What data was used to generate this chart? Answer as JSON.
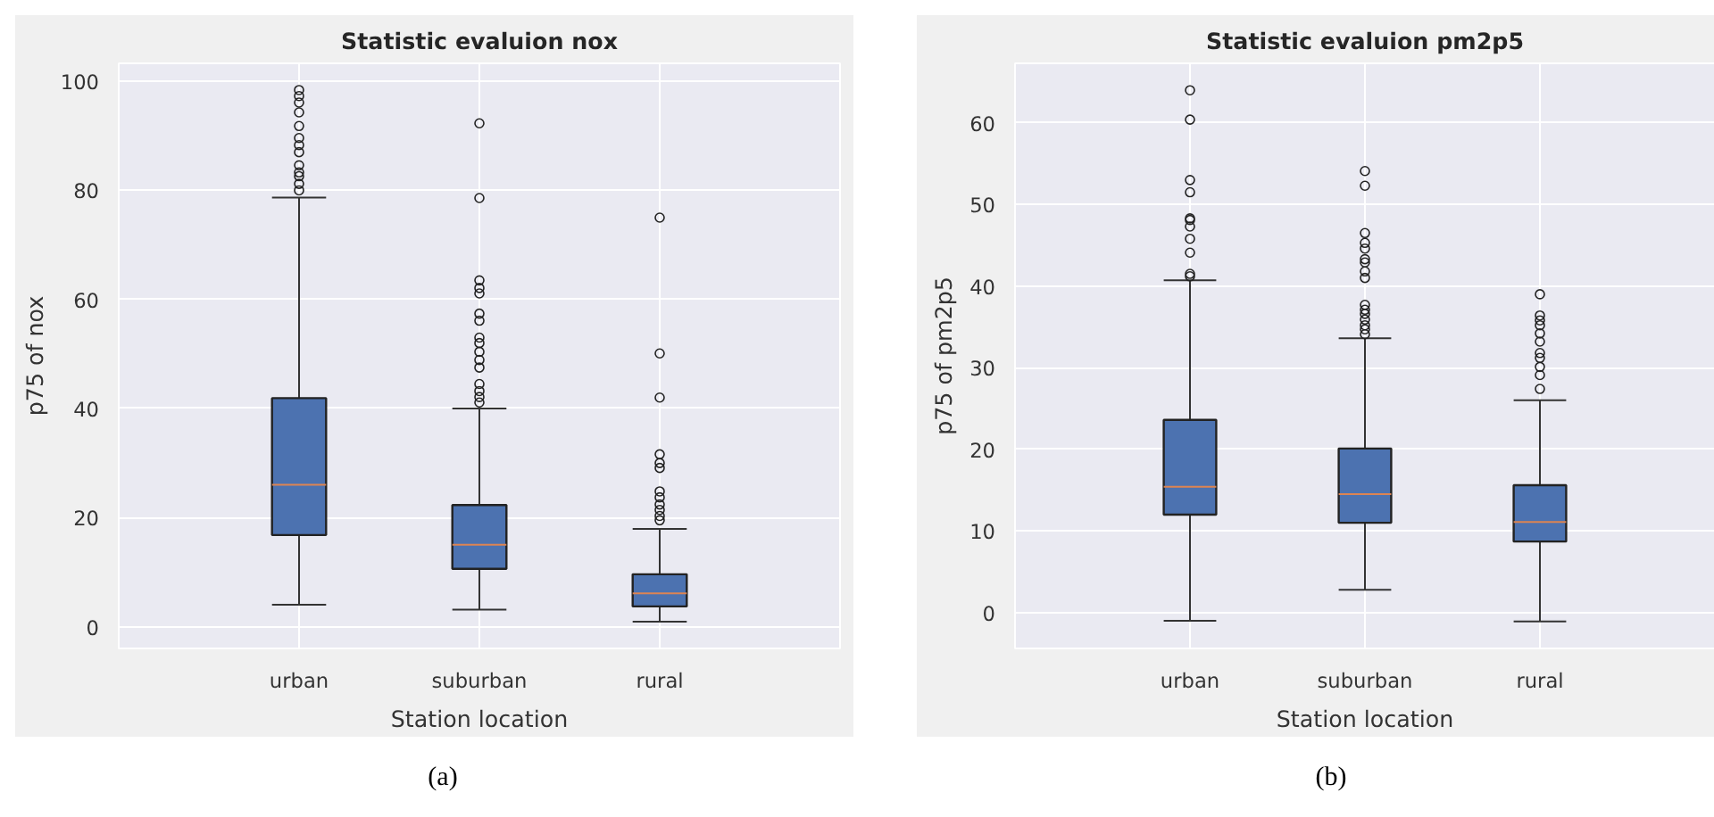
{
  "chart_data": [
    {
      "type": "box",
      "title": "Statistic evaluion nox",
      "xlabel": "Station location",
      "ylabel": "p75 of nox",
      "categories": [
        "urban",
        "suburban",
        "rural"
      ],
      "ylim": [
        -4,
        103.3
      ],
      "yticks": [
        0,
        20,
        40,
        60,
        80,
        100
      ],
      "grid": true,
      "annotations": [
        "(a)"
      ],
      "series": [
        {
          "color": "#4c72b0",
          "boxes": [
            {
              "low": 4.0,
              "q1": 16.8,
              "median": 26.0,
              "q3": 41.9,
              "high": 78.7,
              "outliers": [
                80.0,
                81.2,
                82.6,
                83.3,
                84.6,
                87.0,
                88.3,
                89.6,
                91.8,
                94.3,
                96.1,
                97.3,
                98.4
              ]
            },
            {
              "low": 3.1,
              "q1": 10.6,
              "median": 15.0,
              "q3": 22.3,
              "high": 40.0,
              "outliers": [
                41.1,
                42.1,
                43.2,
                44.5,
                47.5,
                48.9,
                50.4,
                52.0,
                53.0,
                56.1,
                57.4,
                61.1,
                62.1,
                63.5,
                78.6,
                92.3
              ]
            },
            {
              "low": 0.9,
              "q1": 3.7,
              "median": 6.1,
              "q3": 9.6,
              "high": 17.9,
              "outliers": [
                19.5,
                20.3,
                21.4,
                22.4,
                23.7,
                24.8,
                29.1,
                30.0,
                31.6,
                42.0,
                50.1,
                75.0
              ]
            }
          ]
        }
      ]
    },
    {
      "type": "box",
      "title": "Statistic evaluion pm2p5",
      "xlabel": "Station location",
      "ylabel": "p75 of pm2p5",
      "categories": [
        "urban",
        "suburban",
        "rural"
      ],
      "ylim": [
        -4.4,
        67.3
      ],
      "yticks": [
        0,
        10,
        20,
        30,
        40,
        50,
        60
      ],
      "grid": true,
      "annotations": [
        "(b)"
      ],
      "series": [
        {
          "color": "#4c72b0",
          "boxes": [
            {
              "low": -1.0,
              "q1": 12.0,
              "median": 15.4,
              "q3": 23.6,
              "high": 40.7,
              "outliers": [
                41.2,
                41.5,
                44.1,
                45.8,
                47.3,
                48.1,
                48.3,
                51.5,
                53.0,
                60.4,
                64.0
              ]
            },
            {
              "low": 2.8,
              "q1": 11.0,
              "median": 14.5,
              "q3": 20.1,
              "high": 33.6,
              "outliers": [
                34.1,
                34.7,
                35.2,
                35.9,
                36.6,
                37.1,
                37.7,
                41.0,
                41.8,
                42.9,
                43.3,
                44.6,
                45.3,
                46.5,
                52.3,
                54.1
              ]
            },
            {
              "low": -1.1,
              "q1": 8.7,
              "median": 11.1,
              "q3": 15.6,
              "high": 26.0,
              "outliers": [
                27.4,
                29.1,
                30.1,
                31.2,
                31.8,
                33.2,
                34.2,
                35.2,
                35.8,
                36.4,
                39.0
              ]
            }
          ]
        }
      ]
    }
  ]
}
